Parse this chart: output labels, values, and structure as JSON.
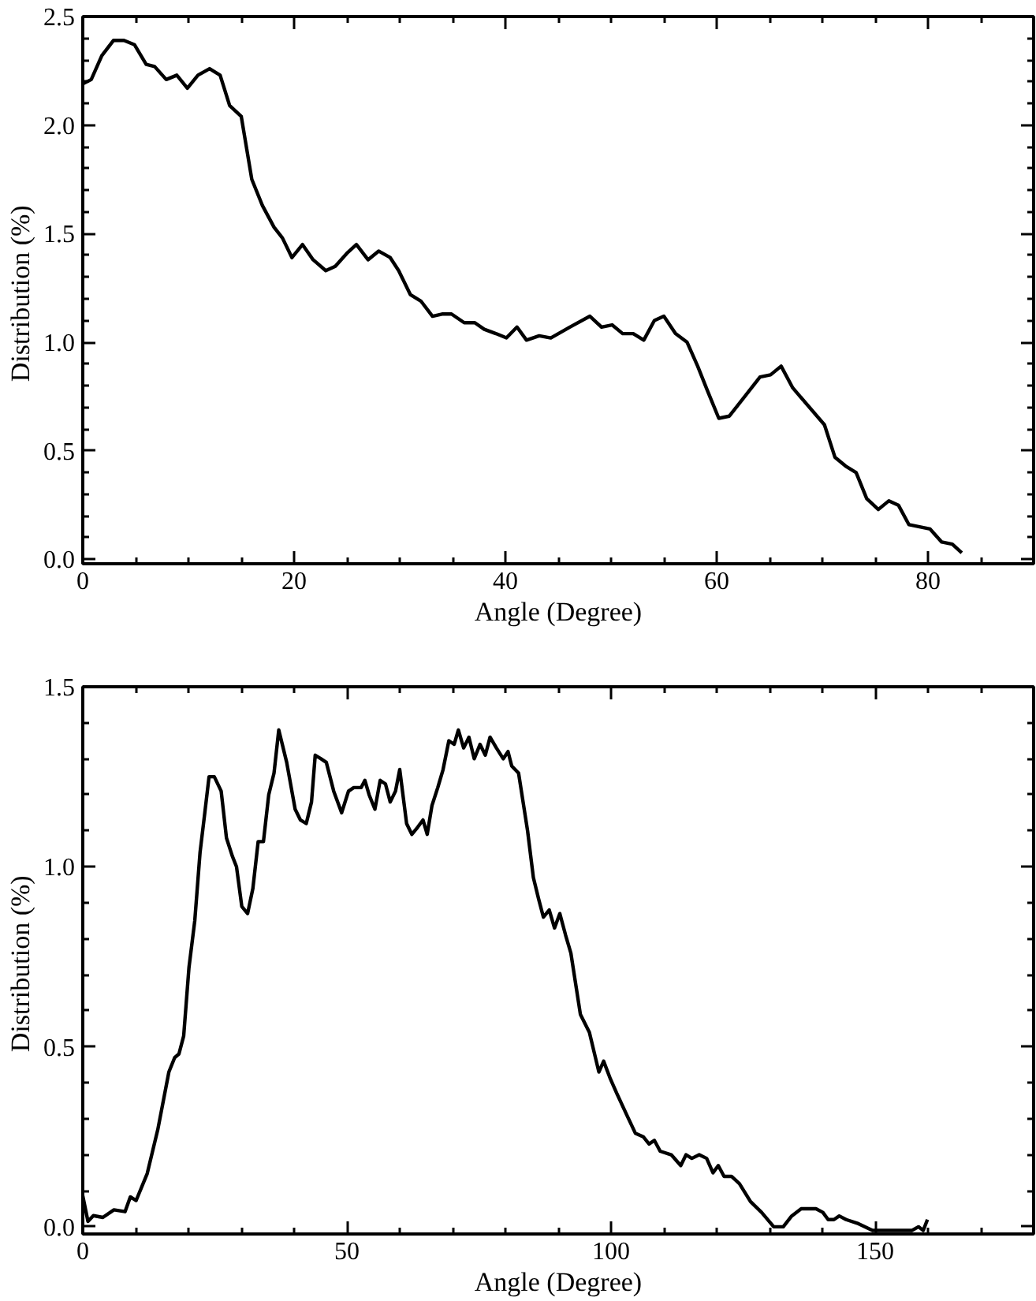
{
  "chart_data": [
    {
      "type": "line",
      "xlabel": "Angle (Degree)",
      "ylabel": "Distribution  (%)",
      "xlim": [
        0,
        90
      ],
      "ylim": [
        -0.02,
        2.5
      ],
      "grid": false,
      "marker": "none",
      "line_style": "solid",
      "xticks": [
        0,
        {
          "value": 5,
          "label": null
        },
        {
          "value": 10,
          "label": null
        },
        {
          "value": 15,
          "label": null
        },
        20,
        {
          "value": 25,
          "label": null
        },
        {
          "value": 30,
          "label": null
        },
        {
          "value": 35,
          "label": null
        },
        40,
        {
          "value": 45,
          "label": null
        },
        {
          "value": 50,
          "label": null
        },
        {
          "value": 55,
          "label": null
        },
        60,
        {
          "value": 65,
          "label": null
        },
        {
          "value": 70,
          "label": null
        },
        {
          "value": 75,
          "label": null
        },
        80,
        {
          "value": 85,
          "label": null
        }
      ],
      "yticks": [
        {
          "value": 0,
          "label": "0.0"
        },
        {
          "value": 0.1,
          "label": null
        },
        {
          "value": 0.2,
          "label": null
        },
        {
          "value": 0.3,
          "label": null
        },
        {
          "value": 0.4,
          "label": null
        },
        0.5,
        {
          "value": 0.6,
          "label": null
        },
        {
          "value": 0.7,
          "label": null
        },
        {
          "value": 0.8,
          "label": null
        },
        {
          "value": 0.9,
          "label": null
        },
        {
          "value": 1,
          "label": "1.0"
        },
        {
          "value": 1.1,
          "label": null
        },
        {
          "value": 1.2,
          "label": null
        },
        {
          "value": 1.3,
          "label": null
        },
        {
          "value": 1.4,
          "label": null
        },
        1.5,
        {
          "value": 1.6,
          "label": null
        },
        {
          "value": 1.7,
          "label": null
        },
        {
          "value": 1.8,
          "label": null
        },
        {
          "value": 1.9,
          "label": null
        },
        {
          "value": 2,
          "label": "2.0"
        },
        {
          "value": 2.1,
          "label": null
        },
        {
          "value": 2.2,
          "label": null
        },
        {
          "value": 2.3,
          "label": null
        },
        {
          "value": 2.4,
          "label": null
        },
        2.5
      ],
      "series": [
        {
          "color": "#000000",
          "x": [
            0,
            0.8,
            1.8,
            2.9,
            3.9,
            4.9,
            6.0,
            6.8,
            7.9,
            8.9,
            9.9,
            10.9,
            12.0,
            13.0,
            13.9,
            15.0,
            16.0,
            17.0,
            18.1,
            18.9,
            19.8,
            20.8,
            21.8,
            23.0,
            23.9,
            25.0,
            25.9,
            27.0,
            28.0,
            29.1,
            29.9,
            31.0,
            32.0,
            33.1,
            34.0,
            34.9,
            36.1,
            37.1,
            38.0,
            39.1,
            40.1,
            41.1,
            42.0,
            43.2,
            44.3,
            46.1,
            48.0,
            49.1,
            50.1,
            51.1,
            52.1,
            53.1,
            54.1,
            55.0,
            56.1,
            57.2,
            58.2,
            59.1,
            60.2,
            61.2,
            64.1,
            65.1,
            66.1,
            67.2,
            70.2,
            71.2,
            72.2,
            73.2,
            74.2,
            75.3,
            76.3,
            77.2,
            78.2,
            79.2,
            80.2,
            81.3,
            82.3,
            83.2
          ],
          "values": [
            2.19,
            2.21,
            2.32,
            2.39,
            2.39,
            2.37,
            2.28,
            2.27,
            2.21,
            2.23,
            2.17,
            2.23,
            2.26,
            2.23,
            2.09,
            2.04,
            1.75,
            1.63,
            1.53,
            1.48,
            1.39,
            1.45,
            1.38,
            1.33,
            1.35,
            1.41,
            1.45,
            1.38,
            1.42,
            1.39,
            1.33,
            1.22,
            1.19,
            1.12,
            1.13,
            1.13,
            1.09,
            1.09,
            1.06,
            1.04,
            1.02,
            1.07,
            1.01,
            1.03,
            1.02,
            1.07,
            1.12,
            1.07,
            1.08,
            1.04,
            1.04,
            1.01,
            1.1,
            1.12,
            1.04,
            1.0,
            0.89,
            0.78,
            0.65,
            0.66,
            0.84,
            0.85,
            0.89,
            0.79,
            0.62,
            0.47,
            0.43,
            0.4,
            0.28,
            0.23,
            0.27,
            0.25,
            0.16,
            0.15,
            0.14,
            0.08,
            0.07,
            0.03
          ]
        }
      ]
    },
    {
      "type": "line",
      "xlabel": "Angle (Degree)",
      "ylabel": "Distribution  (%)",
      "xlim": [
        0,
        180
      ],
      "ylim": [
        -0.02,
        1.5
      ],
      "grid": false,
      "marker": "none",
      "line_style": "solid",
      "xticks": [
        0,
        {
          "value": 10,
          "label": null
        },
        {
          "value": 20,
          "label": null
        },
        {
          "value": 30,
          "label": null
        },
        {
          "value": 40,
          "label": null
        },
        50,
        {
          "value": 60,
          "label": null
        },
        {
          "value": 70,
          "label": null
        },
        {
          "value": 80,
          "label": null
        },
        {
          "value": 90,
          "label": null
        },
        100,
        {
          "value": 110,
          "label": null
        },
        {
          "value": 120,
          "label": null
        },
        {
          "value": 130,
          "label": null
        },
        {
          "value": 140,
          "label": null
        },
        150,
        {
          "value": 160,
          "label": null
        },
        {
          "value": 170,
          "label": null
        }
      ],
      "yticks": [
        {
          "value": 0,
          "label": "0.0"
        },
        {
          "value": 0.1,
          "label": null
        },
        {
          "value": 0.2,
          "label": null
        },
        {
          "value": 0.3,
          "label": null
        },
        {
          "value": 0.4,
          "label": null
        },
        0.5,
        {
          "value": 0.6,
          "label": null
        },
        {
          "value": 0.7,
          "label": null
        },
        {
          "value": 0.8,
          "label": null
        },
        {
          "value": 0.9,
          "label": null
        },
        {
          "value": 1,
          "label": "1.0"
        },
        {
          "value": 1.1,
          "label": null
        },
        {
          "value": 1.2,
          "label": null
        },
        {
          "value": 1.3,
          "label": null
        },
        {
          "value": 1.4,
          "label": null
        },
        1.5
      ],
      "series": [
        {
          "color": "#000000",
          "x": [
            0,
            0.98,
            2.0,
            3.8,
            5.9,
            8.0,
            9.0,
            10.1,
            12.2,
            14.2,
            16.3,
            17.4,
            18.2,
            19.1,
            20.1,
            21.2,
            22.2,
            23.1,
            23.9,
            24.9,
            26.2,
            27.2,
            28.3,
            29.1,
            30.1,
            31.2,
            32.2,
            33.2,
            34.2,
            35.2,
            36.2,
            37.1,
            38.6,
            40.2,
            41.2,
            42.3,
            43.3,
            44.0,
            45.1,
            46.1,
            47.5,
            49.0,
            50.3,
            51.3,
            52.7,
            53.4,
            54.2,
            55.3,
            56.3,
            57.3,
            58.2,
            59.2,
            60.0,
            61.3,
            62.3,
            63.4,
            64.4,
            65.2,
            66.1,
            67.2,
            68.2,
            69.3,
            70.3,
            71.1,
            72.1,
            73.1,
            74.1,
            75.2,
            76.2,
            77.1,
            78.3,
            79.6,
            80.5,
            81.2,
            82.5,
            84.2,
            85.3,
            86.3,
            87.2,
            88.3,
            89.3,
            90.3,
            91.4,
            92.4,
            94.2,
            95.9,
            97.7,
            98.6,
            99.9,
            101.1,
            103.0,
            104.6,
            106.1,
            107.2,
            108.2,
            109.3,
            111.4,
            113.2,
            114.2,
            115.3,
            116.7,
            118.1,
            119.3,
            120.3,
            121.4,
            122.8,
            124.3,
            126.4,
            128.5,
            130.8,
            132.6,
            134.2,
            136.0,
            138.8,
            140.1,
            141.1,
            142.2,
            143.2,
            144.5,
            146.6,
            149.5,
            151.8,
            157.0,
            158.2,
            159.1,
            159.9
          ],
          "values": [
            0.086,
            0.015,
            0.031,
            0.026,
            0.047,
            0.042,
            0.083,
            0.073,
            0.148,
            0.27,
            0.43,
            0.47,
            0.48,
            0.53,
            0.72,
            0.85,
            1.04,
            1.15,
            1.25,
            1.25,
            1.21,
            1.08,
            1.03,
            1.0,
            0.89,
            0.87,
            0.94,
            1.07,
            1.07,
            1.2,
            1.26,
            1.38,
            1.29,
            1.16,
            1.13,
            1.12,
            1.18,
            1.31,
            1.3,
            1.29,
            1.21,
            1.15,
            1.21,
            1.22,
            1.22,
            1.24,
            1.2,
            1.16,
            1.24,
            1.23,
            1.18,
            1.21,
            1.27,
            1.12,
            1.09,
            1.11,
            1.13,
            1.09,
            1.17,
            1.22,
            1.27,
            1.35,
            1.34,
            1.38,
            1.33,
            1.36,
            1.3,
            1.34,
            1.31,
            1.36,
            1.33,
            1.3,
            1.32,
            1.28,
            1.26,
            1.1,
            0.97,
            0.91,
            0.86,
            0.88,
            0.83,
            0.87,
            0.81,
            0.76,
            0.59,
            0.54,
            0.43,
            0.46,
            0.41,
            0.37,
            0.31,
            0.26,
            0.25,
            0.23,
            0.24,
            0.21,
            0.2,
            0.17,
            0.2,
            0.19,
            0.2,
            0.19,
            0.15,
            0.17,
            0.14,
            0.14,
            0.12,
            0.07,
            0.04,
            0.0,
            0.0,
            0.03,
            0.05,
            0.05,
            0.04,
            0.02,
            0.02,
            0.03,
            0.02,
            0.01,
            -0.01,
            -0.01,
            -0.01,
            0.0,
            -0.01,
            0.02
          ]
        }
      ]
    }
  ]
}
